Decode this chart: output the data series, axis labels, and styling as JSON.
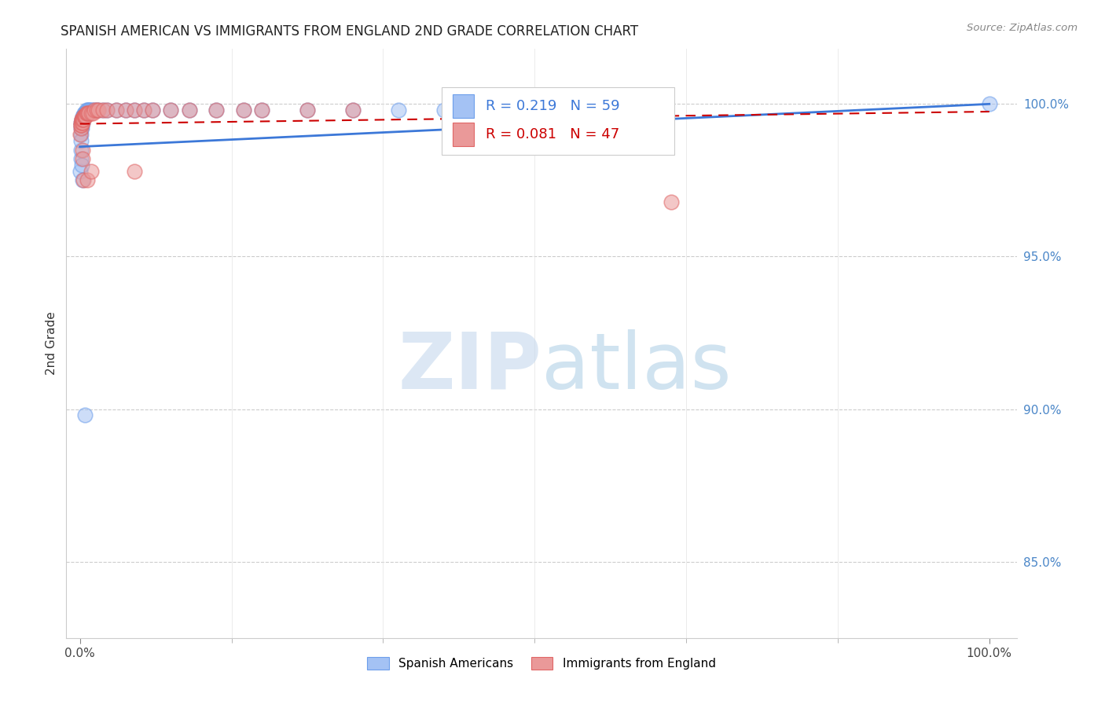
{
  "title": "SPANISH AMERICAN VS IMMIGRANTS FROM ENGLAND 2ND GRADE CORRELATION CHART",
  "source": "Source: ZipAtlas.com",
  "ylabel": "2nd Grade",
  "blue_R": 0.219,
  "blue_N": 59,
  "pink_R": 0.081,
  "pink_N": 47,
  "blue_color": "#a4c2f4",
  "pink_color": "#ea9999",
  "blue_edge": "#6d9eeb",
  "pink_edge": "#e06666",
  "trendline_blue": "#3c78d8",
  "trendline_pink": "#cc0000",
  "watermark_zip": "ZIP",
  "watermark_atlas": "atlas",
  "legend_label_blue": "Spanish Americans",
  "legend_label_pink": "Immigrants from England",
  "ylim_min": 82.5,
  "ylim_max": 101.8,
  "xlim_min": -1.5,
  "xlim_max": 103,
  "ytick_vals": [
    85.0,
    90.0,
    95.0,
    100.0
  ],
  "ytick_labels": [
    "85.0%",
    "90.0%",
    "95.0%",
    "100.0%"
  ],
  "blue_x": [
    0.05,
    0.08,
    0.1,
    0.12,
    0.13,
    0.15,
    0.17,
    0.18,
    0.2,
    0.22,
    0.25,
    0.27,
    0.3,
    0.32,
    0.35,
    0.38,
    0.4,
    0.43,
    0.45,
    0.48,
    0.5,
    0.55,
    0.6,
    0.65,
    0.7,
    0.75,
    0.8,
    0.9,
    1.0,
    1.1,
    1.2,
    1.4,
    1.6,
    1.8,
    2.0,
    2.5,
    3.0,
    4.0,
    5.0,
    6.0,
    7.0,
    8.0,
    10.0,
    12.0,
    15.0,
    18.0,
    20.0,
    25.0,
    30.0,
    35.0,
    40.0,
    45.0,
    50.0,
    0.1,
    0.15,
    0.2,
    0.3,
    0.5,
    100.0
  ],
  "blue_y": [
    97.8,
    98.2,
    99.0,
    99.2,
    99.3,
    99.4,
    99.2,
    99.5,
    99.4,
    99.3,
    99.5,
    99.4,
    99.6,
    99.5,
    99.6,
    99.5,
    99.6,
    99.6,
    99.7,
    99.6,
    99.7,
    99.7,
    99.7,
    99.7,
    99.8,
    99.7,
    99.8,
    99.8,
    99.8,
    99.8,
    99.8,
    99.8,
    99.8,
    99.8,
    99.8,
    99.8,
    99.8,
    99.8,
    99.8,
    99.8,
    99.8,
    99.8,
    99.8,
    99.8,
    99.8,
    99.8,
    99.8,
    99.8,
    99.8,
    99.8,
    99.8,
    99.8,
    99.8,
    98.5,
    98.8,
    98.0,
    97.5,
    89.8,
    100.0
  ],
  "pink_x": [
    0.05,
    0.08,
    0.1,
    0.12,
    0.15,
    0.18,
    0.2,
    0.22,
    0.25,
    0.28,
    0.3,
    0.35,
    0.4,
    0.45,
    0.5,
    0.55,
    0.6,
    0.7,
    0.8,
    0.9,
    1.0,
    1.2,
    1.4,
    1.6,
    1.8,
    2.0,
    2.5,
    3.0,
    4.0,
    5.0,
    6.0,
    7.0,
    8.0,
    10.0,
    12.0,
    15.0,
    18.0,
    20.0,
    25.0,
    30.0,
    0.25,
    0.3,
    0.4,
    6.0,
    0.8,
    1.2,
    65.0
  ],
  "pink_y": [
    99.0,
    99.2,
    99.3,
    99.4,
    99.3,
    99.5,
    99.4,
    99.5,
    99.5,
    99.4,
    99.5,
    99.6,
    99.5,
    99.6,
    99.6,
    99.6,
    99.6,
    99.7,
    99.7,
    99.7,
    99.7,
    99.7,
    99.7,
    99.8,
    99.8,
    99.8,
    99.8,
    99.8,
    99.8,
    99.8,
    99.8,
    99.8,
    99.8,
    99.8,
    99.8,
    99.8,
    99.8,
    99.8,
    99.8,
    99.8,
    98.5,
    98.2,
    97.5,
    97.8,
    97.5,
    97.8,
    96.8
  ],
  "blue_trend_x0": 0.0,
  "blue_trend_y0": 98.6,
  "blue_trend_x1": 100.0,
  "blue_trend_y1": 100.0,
  "pink_trend_x0": 0.0,
  "pink_trend_y0": 99.35,
  "pink_trend_x1": 100.0,
  "pink_trend_y1": 99.75
}
